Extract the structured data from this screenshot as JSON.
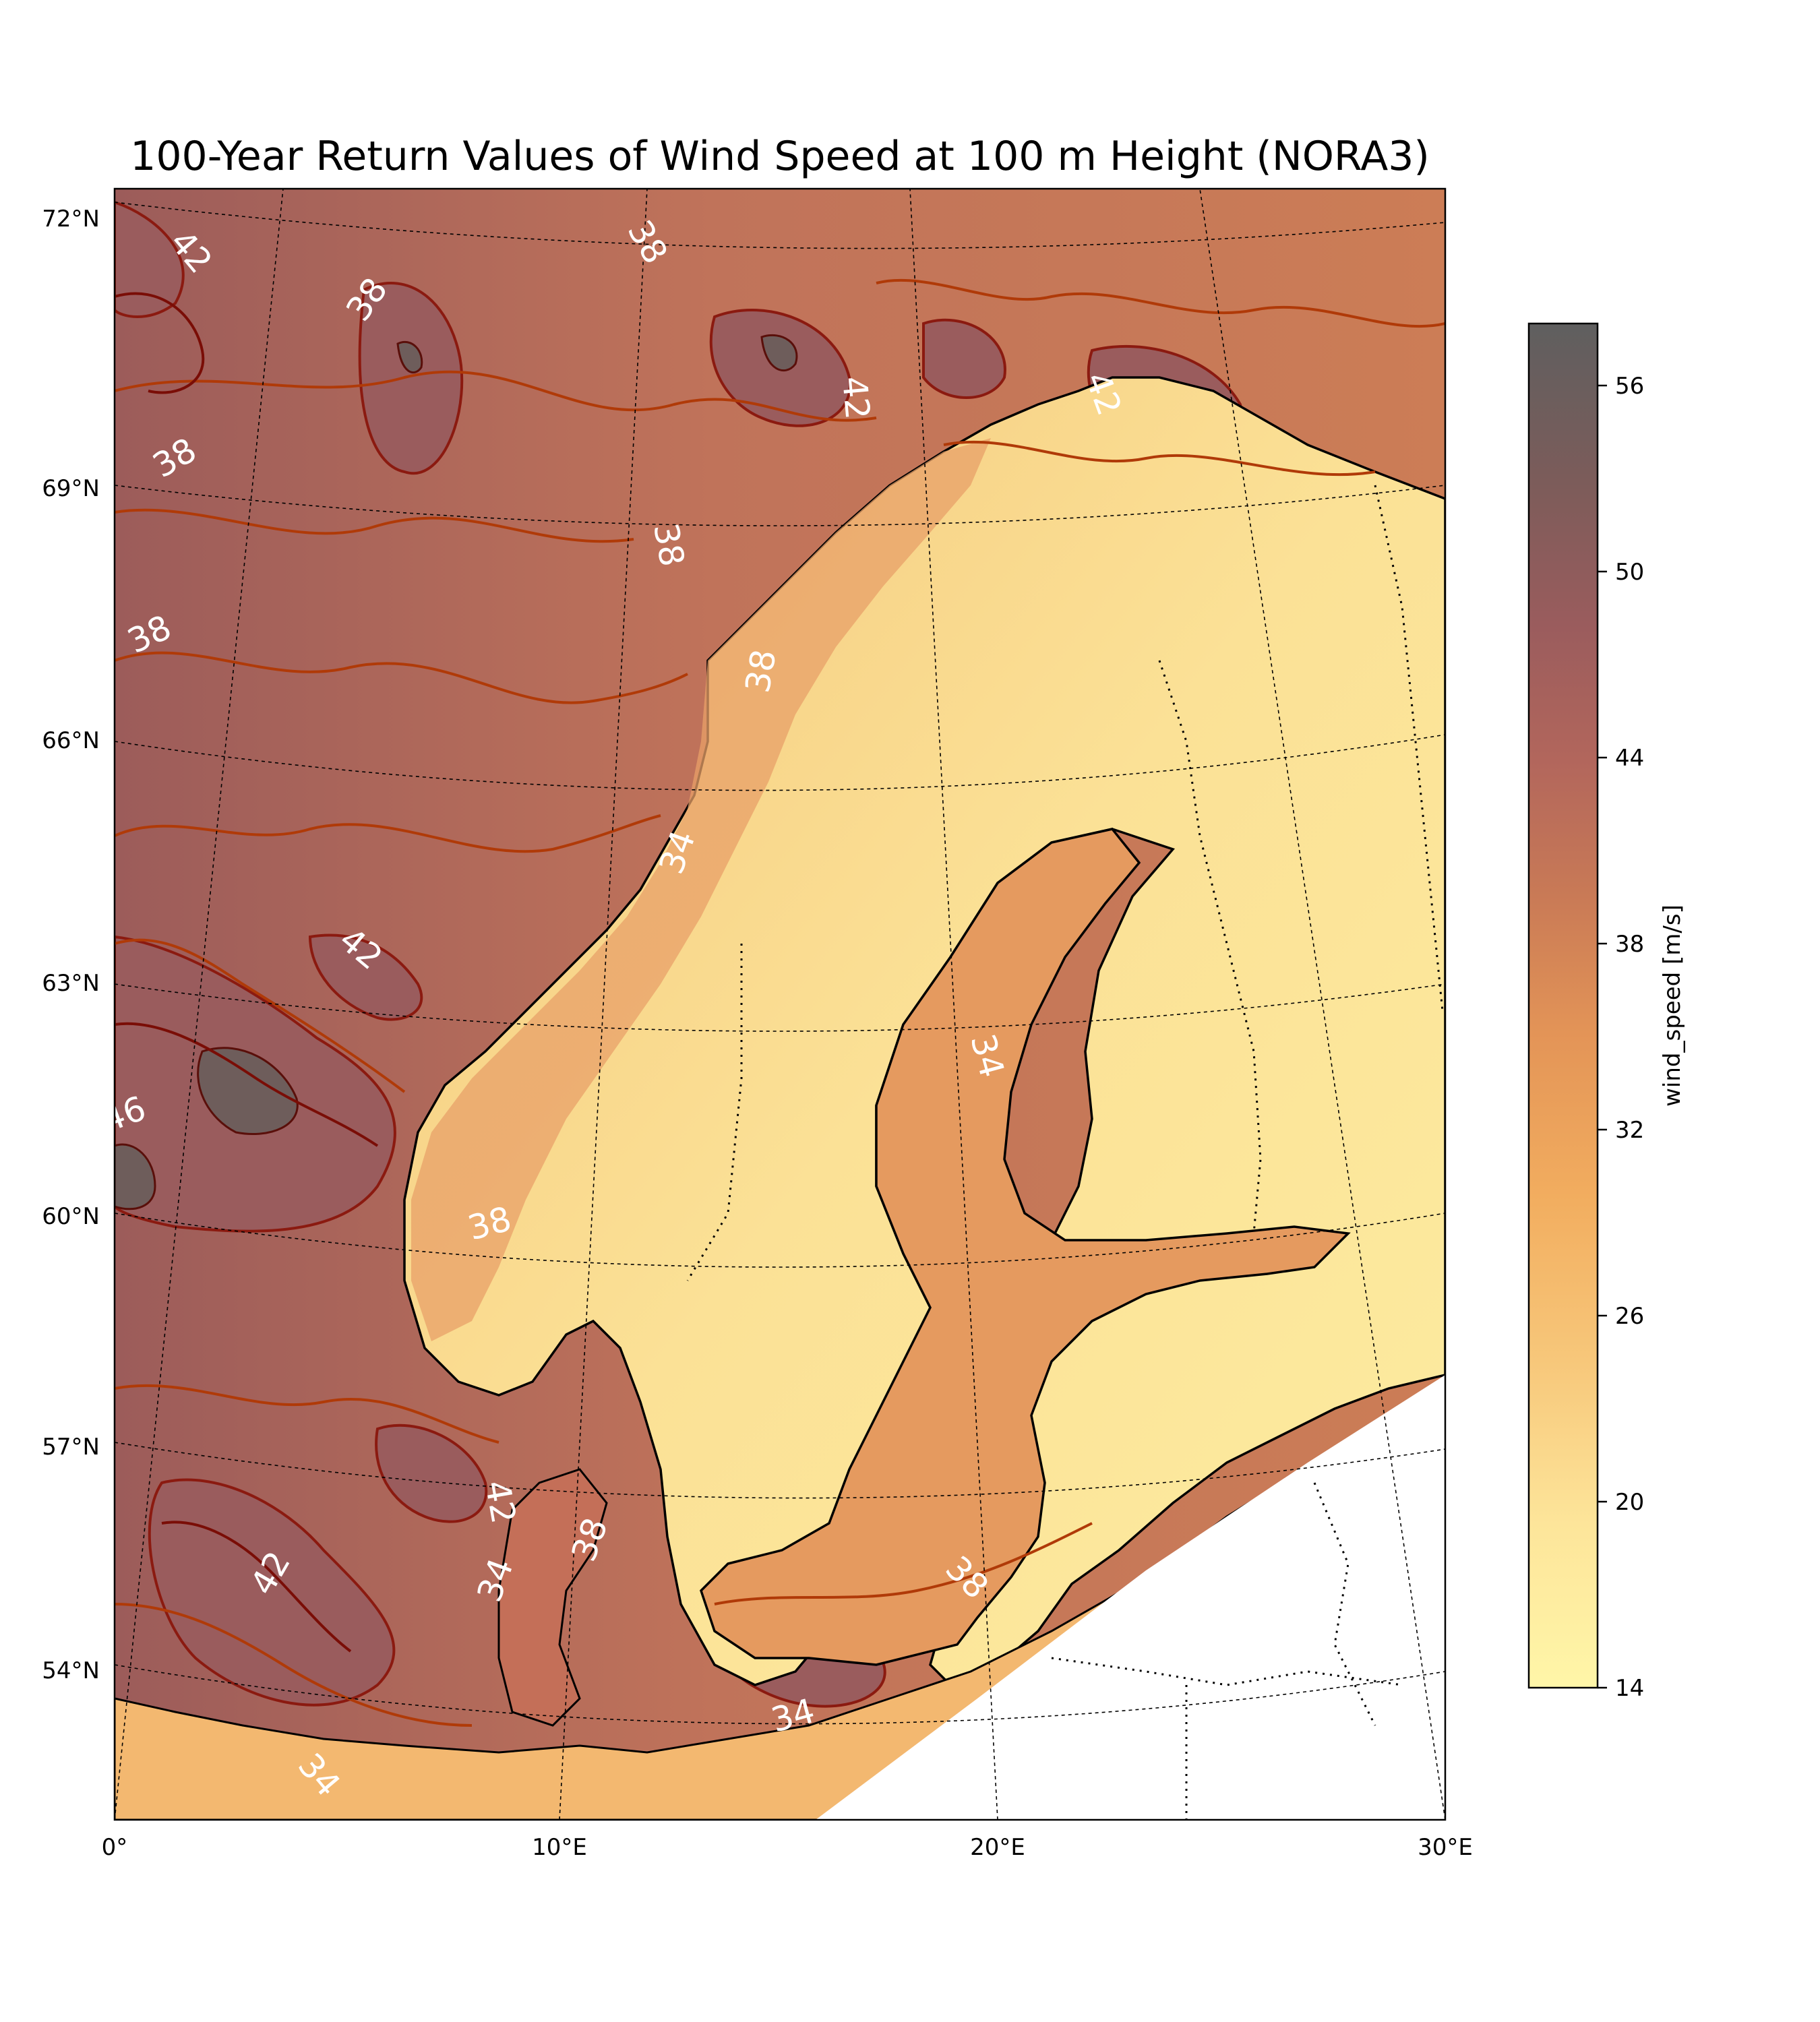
{
  "title": "100-Year Return Values of Wind Speed at 100 m Height (NORA3)",
  "chart_data": {
    "type": "heatmap",
    "title": "100-Year Return Values of Wind Speed at 100 m Height (NORA3)",
    "projection": "conic",
    "lon_range": [
      0,
      30
    ],
    "lat_range": [
      52,
      72
    ],
    "lon_ticks": [
      {
        "value": 0,
        "label": "0°"
      },
      {
        "value": 10,
        "label": "10°E"
      },
      {
        "value": 20,
        "label": "20°E"
      },
      {
        "value": 30,
        "label": "30°E"
      }
    ],
    "lat_ticks": [
      {
        "value": 72,
        "label": "72°N"
      },
      {
        "value": 69,
        "label": "69°N"
      },
      {
        "value": 66,
        "label": "66°N"
      },
      {
        "value": 63,
        "label": "63°N"
      },
      {
        "value": 60,
        "label": "60°N"
      },
      {
        "value": 57,
        "label": "57°N"
      },
      {
        "value": 54,
        "label": "54°N"
      }
    ],
    "gridlines": true,
    "colorbar": {
      "label": "wind_speed [m/s]",
      "min": 14,
      "max": 58,
      "levels_step": 2,
      "ticks": [
        14,
        20,
        26,
        32,
        38,
        44,
        50,
        56
      ],
      "colormap": "YlOrBr-dark",
      "colors": [
        "#fff6a8",
        "#ffe998",
        "#fbd98a",
        "#f8c979",
        "#f5b86a",
        "#f0a85d",
        "#e89758",
        "#d98a57",
        "#cc7d56",
        "#bf6f58",
        "#b2665b",
        "#a05e5d",
        "#8e5b5b",
        "#7d5c5a",
        "#6e5d5b",
        "#626262"
      ],
      "position": "right"
    },
    "contour_labels": [
      {
        "text": "42",
        "lon": 1.1,
        "lat": 71.9
      },
      {
        "text": "38",
        "lon": 12.0,
        "lat": 71.9
      },
      {
        "text": "38",
        "lon": 5.5,
        "lat": 71.0
      },
      {
        "text": "42",
        "lon": 17.0,
        "lat": 70.5
      },
      {
        "text": "42",
        "lon": 22.5,
        "lat": 70.6
      },
      {
        "text": "38",
        "lon": 1.3,
        "lat": 69.3
      },
      {
        "text": "38",
        "lon": 12.6,
        "lat": 68.5
      },
      {
        "text": "38",
        "lon": 0.5,
        "lat": 67.3
      },
      {
        "text": "38",
        "lon": 14.7,
        "lat": 66.3
      },
      {
        "text": "34",
        "lon": 13.2,
        "lat": 64.6
      },
      {
        "text": "42",
        "lon": 5.5,
        "lat": 63.5
      },
      {
        "text": "34",
        "lon": 19.0,
        "lat": 62.4
      },
      {
        "text": "46",
        "lon": 0.2,
        "lat": 61.5
      },
      {
        "text": "38",
        "lon": 8.7,
        "lat": 60.1
      },
      {
        "text": "42",
        "lon": 8.8,
        "lat": 56.1
      },
      {
        "text": "38",
        "lon": 11.0,
        "lat": 55.9
      },
      {
        "text": "34",
        "lon": 8.8,
        "lat": 55.2
      },
      {
        "text": "42",
        "lon": 3.8,
        "lat": 55.5
      },
      {
        "text": "38",
        "lon": 18.4,
        "lat": 55.5
      },
      {
        "text": "34",
        "lon": 15.2,
        "lat": 53.8
      },
      {
        "text": "34",
        "lon": 4.2,
        "lat": 52.8
      }
    ]
  },
  "legend": {
    "colorbar_label": "wind_speed [m/s]"
  }
}
